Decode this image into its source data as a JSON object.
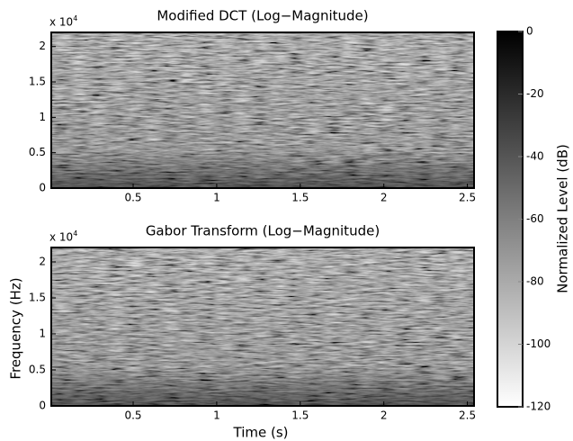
{
  "chart_data": [
    {
      "type": "heatmap",
      "title": "Modified DCT (Log−Magnitude)",
      "y_scale_base": "x 10",
      "y_scale_exponent": "4",
      "xlim": [
        0.01,
        2.54
      ],
      "xticks": [
        0.5,
        1,
        1.5,
        2,
        2.5
      ],
      "ylim": [
        0,
        2.2
      ],
      "yticks": [
        0,
        0.5,
        1,
        1.5,
        2
      ]
    },
    {
      "type": "heatmap",
      "title": "Gabor Transform (Log−Magnitude)",
      "y_scale_base": "x 10",
      "y_scale_exponent": "4",
      "xlabel": "Time (s)",
      "ylabel": "Frequency (Hz)",
      "xlim": [
        0.01,
        2.54
      ],
      "xticks": [
        0.5,
        1,
        1.5,
        2,
        2.5
      ],
      "ylim": [
        0,
        2.2
      ],
      "yticks": [
        0,
        0.5,
        1,
        1.5,
        2
      ]
    },
    {
      "type": "colorbar",
      "label": "Normalized Level (dB)",
      "ylim": [
        -120,
        0
      ],
      "yticks": [
        0,
        -20,
        -40,
        -60,
        -80,
        -100,
        -120
      ]
    }
  ]
}
